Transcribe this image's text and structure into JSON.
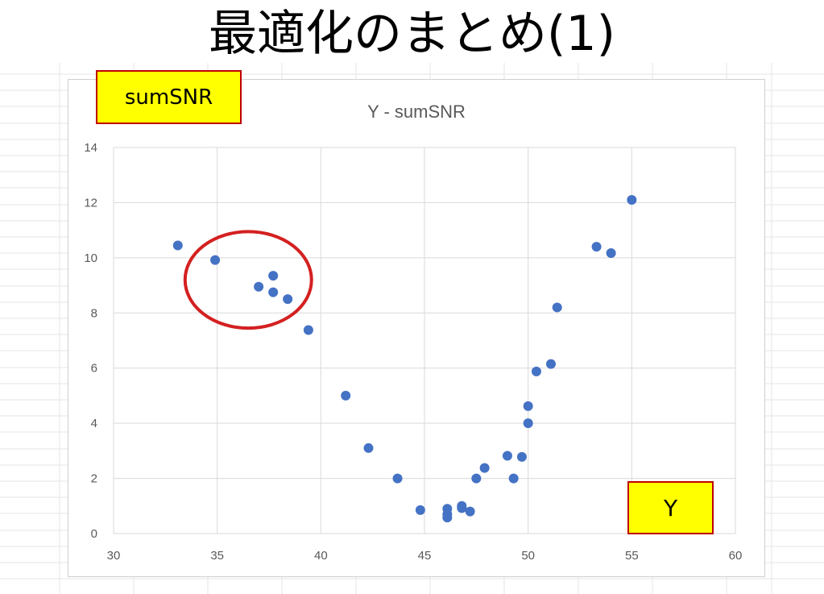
{
  "slide": {
    "title": "最適化のまとめ(1)"
  },
  "callouts": {
    "y_axis_label": "sumSNR",
    "x_axis_label": "Y"
  },
  "colors": {
    "marker": "#4472c4",
    "grid": "#d9d9d9",
    "ellipse": "#d42020",
    "callout_fill": "#ffff00",
    "callout_border": "#c00000"
  },
  "chart_data": {
    "type": "scatter",
    "title": "Y - sumSNR",
    "xlabel": "",
    "ylabel": "",
    "xlim": [
      30,
      60
    ],
    "ylim": [
      0,
      14
    ],
    "xticks": [
      30,
      35,
      40,
      45,
      50,
      55,
      60
    ],
    "yticks": [
      0,
      2,
      4,
      6,
      8,
      10,
      12,
      14
    ],
    "grid": true,
    "legend": "none",
    "series": [
      {
        "x": [
          33.1,
          34.9,
          37.0,
          37.7,
          37.7,
          38.4,
          39.4,
          41.2,
          42.3,
          43.7,
          44.8,
          46.1,
          46.1,
          46.1,
          46.8,
          46.8,
          47.2,
          47.5,
          47.9,
          49.0,
          49.3,
          49.7,
          50.0,
          50.0,
          50.4,
          51.1,
          51.4,
          53.3,
          54.0,
          55.0
        ],
        "y": [
          10.45,
          9.92,
          8.95,
          9.35,
          8.75,
          8.5,
          7.38,
          5.0,
          3.1,
          2.0,
          0.85,
          0.9,
          0.7,
          0.58,
          1.0,
          0.92,
          0.8,
          2.0,
          2.38,
          2.82,
          2.0,
          2.78,
          4.62,
          4.0,
          5.88,
          6.15,
          8.2,
          10.4,
          10.17,
          12.1
        ]
      }
    ],
    "annotation": {
      "type": "ellipse",
      "center": [
        36.5,
        9.2
      ],
      "rx_data": 3.05,
      "ry_data": 1.75
    }
  }
}
